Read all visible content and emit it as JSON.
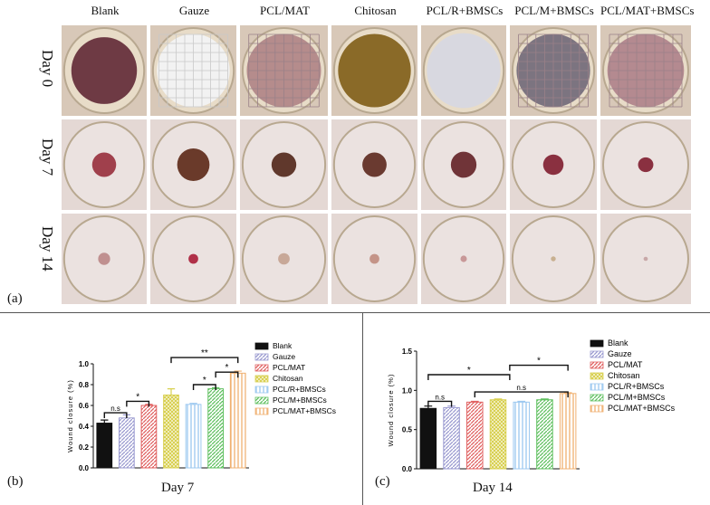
{
  "figure": {
    "columns": [
      "Blank",
      "Gauze",
      "PCL/MAT",
      "Chitosan",
      "PCL/R+BMSCs",
      "PCL/M+BMSCs",
      "PCL/MAT+BMSCs"
    ],
    "rows": [
      "Day 0",
      "Day 7",
      "Day 14"
    ],
    "panel_a": "(a)",
    "panel_b": "(b)",
    "panel_c": "(c)"
  },
  "chart_data": [
    {
      "type": "bar",
      "title": "Day 7",
      "ylabel": "Wound closure (%)",
      "ylim": [
        0.0,
        1.0
      ],
      "yticks": [
        "0.0",
        "0.2",
        "0.4",
        "0.6",
        "0.8",
        "1.0"
      ],
      "categories": [
        "Blank",
        "Gauze",
        "PCL/MAT",
        "Chitosan",
        "PCL/R+BMSCs",
        "PCL/M+BMSCs",
        "PCL/MAT+BMSCs"
      ],
      "values": [
        0.43,
        0.48,
        0.6,
        0.7,
        0.61,
        0.76,
        0.91
      ],
      "errors": [
        0.03,
        0.03,
        0.01,
        0.06,
        0.01,
        0.01,
        0.02
      ],
      "legend": [
        "Blank",
        "Gauze",
        "PCL/MAT",
        "Chitosan",
        "PCL/R+BMSCs",
        "PCL/M+BMSCs",
        "PCL/MAT+BMSCs"
      ],
      "legend_position": "right",
      "significance": [
        {
          "from": 1,
          "to": 2,
          "label": "*",
          "y": 0.64
        },
        {
          "from": 0,
          "to": 1,
          "label": "n.s",
          "y": 0.53
        },
        {
          "from": 4,
          "to": 5,
          "label": "*",
          "y": 0.8
        },
        {
          "from": 5,
          "to": 6,
          "label": "*",
          "y": 0.92
        },
        {
          "from": 3,
          "to": 6,
          "label": "**",
          "y": 1.06
        }
      ]
    },
    {
      "type": "bar",
      "title": "Day 14",
      "ylabel": "Wound closure (%)",
      "ylim": [
        0.0,
        1.5
      ],
      "yticks": [
        "0.0",
        "0.5",
        "1.0",
        "1.5"
      ],
      "categories": [
        "Blank",
        "Gauze",
        "PCL/MAT",
        "Chitosan",
        "PCL/R+BMSCs",
        "PCL/M+BMSCs",
        "PCL/MAT+BMSCs"
      ],
      "values": [
        0.77,
        0.78,
        0.85,
        0.88,
        0.85,
        0.88,
        0.96
      ],
      "errors": [
        0.03,
        0.02,
        0.01,
        0.01,
        0.01,
        0.01,
        0.01
      ],
      "legend": [
        "Blank",
        "Gauze",
        "PCL/MAT",
        "Chitosan",
        "PCL/R+BMSCs",
        "PCL/M+BMSCs",
        "PCL/MAT+BMSCs"
      ],
      "legend_position": "right",
      "significance": [
        {
          "from": 0,
          "to": 1,
          "label": "n.s",
          "y": 0.86
        },
        {
          "from": 2,
          "to": 6,
          "label": "n.s",
          "y": 0.98
        },
        {
          "from": 0,
          "to": 3.5,
          "label": "*",
          "y": 1.2
        },
        {
          "from": 3.5,
          "to": 6,
          "label": "*",
          "y": 1.32
        }
      ]
    }
  ],
  "colors": {
    "series": [
      "#111111",
      "#9a9ad0",
      "#e06060",
      "#d8d050",
      "#9cc8f0",
      "#60c060",
      "#f0b070"
    ],
    "patterns": [
      "solid",
      "hatch",
      "hatch",
      "dots",
      "vlines",
      "hatch",
      "vlines"
    ]
  }
}
